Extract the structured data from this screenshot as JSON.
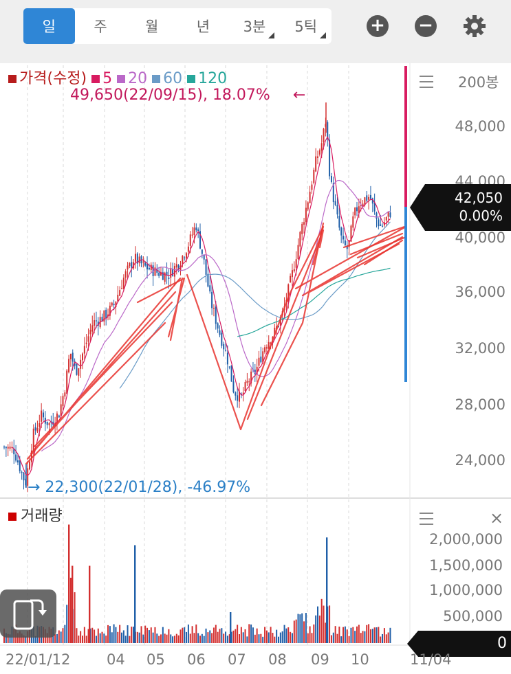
{
  "periods": [
    {
      "label": "일",
      "active": true,
      "dropdown": false
    },
    {
      "label": "주",
      "active": false,
      "dropdown": false
    },
    {
      "label": "월",
      "active": false,
      "dropdown": false
    },
    {
      "label": "년",
      "active": false,
      "dropdown": false
    },
    {
      "label": "3분",
      "active": false,
      "dropdown": true
    },
    {
      "label": "5틱",
      "active": false,
      "dropdown": true
    }
  ],
  "toolbar": {
    "zoom_in": "+",
    "zoom_out": "−"
  },
  "legend": [
    {
      "label": "가격(수정)",
      "color": "#b71c1c"
    },
    {
      "label": "5",
      "color": "#d81b60"
    },
    {
      "label": "20",
      "color": "#ba68c8"
    },
    {
      "label": "60",
      "color": "#6a9bc7"
    },
    {
      "label": "120",
      "color": "#26a69a"
    }
  ],
  "price_chart": {
    "bar_count_label": "200봉",
    "y_ticks": [
      "48,000",
      "44,000",
      "40,000",
      "36,000",
      "32,000",
      "28,000",
      "24,000"
    ],
    "high_label": "49,650(22/09/15), 18.07%",
    "high_arrow": "←",
    "low_label": "→ 22,300(22/01/28), -46.97%",
    "current_price": "42,050",
    "current_change": "0.00%"
  },
  "volume_chart": {
    "title": "거래량",
    "close": "×",
    "y_ticks": [
      "2,000,000",
      "1,500,000",
      "1,000,000",
      "500,000"
    ],
    "current_volume": "0"
  },
  "x_ticks": [
    "22/01/12",
    "04",
    "05",
    "06",
    "07",
    "08",
    "09",
    "10",
    "11/04"
  ],
  "colors": {
    "up": "#d32f2f",
    "down": "#1f5fa8",
    "accent": "#2f86d6",
    "high": "#c2185b",
    "low": "#2a7fc6"
  }
}
